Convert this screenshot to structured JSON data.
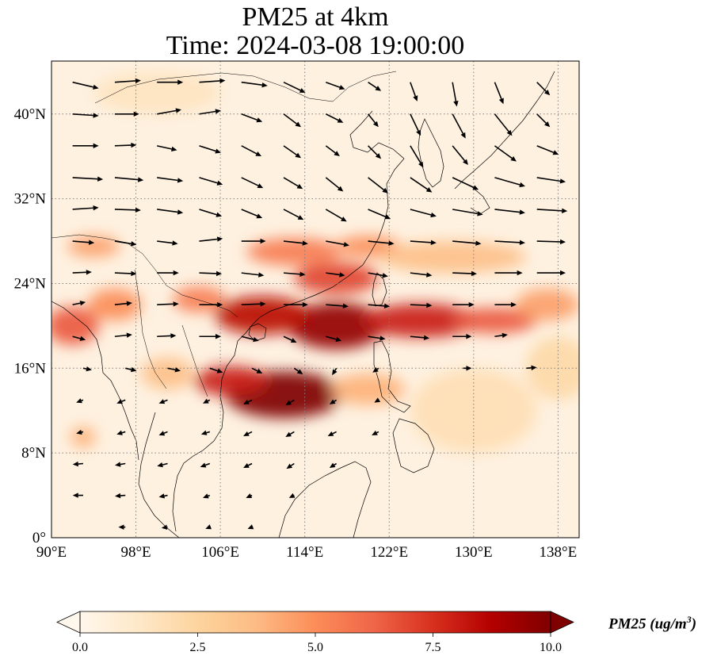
{
  "title": {
    "line1": "PM25 at 4km",
    "line2": "Time: 2024-03-08 19:00:00"
  },
  "map": {
    "projection": "PlateCarree",
    "lon_range": [
      90,
      140
    ],
    "lat_range": [
      0,
      45
    ],
    "gridlines": {
      "style": "dotted",
      "color": "#808080"
    },
    "lon_ticks": [
      {
        "value": 90,
        "label": "90°E"
      },
      {
        "value": 98,
        "label": "98°E"
      },
      {
        "value": 106,
        "label": "106°E"
      },
      {
        "value": 114,
        "label": "114°E"
      },
      {
        "value": 122,
        "label": "122°E"
      },
      {
        "value": 130,
        "label": "130°E"
      },
      {
        "value": 138,
        "label": "138°E"
      }
    ],
    "lat_ticks": [
      {
        "value": 0,
        "label": "0°"
      },
      {
        "value": 8,
        "label": "8°N"
      },
      {
        "value": 16,
        "label": "16°N"
      },
      {
        "value": 24,
        "label": "24°N"
      },
      {
        "value": 32,
        "label": "32°N"
      },
      {
        "value": 40,
        "label": "40°N"
      }
    ],
    "background_color": "#fef1e0",
    "pollution_blobs": [
      {
        "lon": 112,
        "lat": 13.5,
        "rlon": 5.5,
        "rlat": 2.2,
        "value": 10
      },
      {
        "lon": 107,
        "lat": 14.8,
        "rlon": 3.5,
        "rlat": 1.4,
        "value": 8
      },
      {
        "lon": 117,
        "lat": 20.0,
        "rlon": 4.5,
        "rlat": 2.2,
        "value": 9.5
      },
      {
        "lon": 110,
        "lat": 21.0,
        "rlon": 4.5,
        "rlat": 1.8,
        "value": 8.5
      },
      {
        "lon": 125,
        "lat": 20.5,
        "rlon": 5.5,
        "rlat": 1.6,
        "value": 8
      },
      {
        "lon": 132,
        "lat": 20.5,
        "rlon": 4.0,
        "rlat": 1.2,
        "value": 6.5
      },
      {
        "lon": 117,
        "lat": 24.5,
        "rlon": 4.0,
        "rlat": 1.5,
        "value": 7
      },
      {
        "lon": 113,
        "lat": 27.0,
        "rlon": 4.5,
        "rlat": 1.3,
        "value": 5.5
      },
      {
        "lon": 120,
        "lat": 27.5,
        "rlon": 3.0,
        "rlat": 1.0,
        "value": 5
      },
      {
        "lon": 92,
        "lat": 20.0,
        "rlon": 2.5,
        "rlat": 1.8,
        "value": 6.5
      },
      {
        "lon": 96,
        "lat": 22.0,
        "rlon": 2.5,
        "rlat": 1.5,
        "value": 5
      },
      {
        "lon": 94,
        "lat": 27.5,
        "rlon": 2.5,
        "rlat": 1.0,
        "value": 4.5
      },
      {
        "lon": 104,
        "lat": 22.5,
        "rlon": 2.5,
        "rlat": 1.2,
        "value": 5.5
      },
      {
        "lon": 128,
        "lat": 26.5,
        "rlon": 7.0,
        "rlat": 1.5,
        "value": 3.5
      },
      {
        "lon": 137,
        "lat": 22.0,
        "rlon": 3.0,
        "rlat": 1.5,
        "value": 4.5
      },
      {
        "lon": 120,
        "lat": 14.0,
        "rlon": 3.5,
        "rlat": 1.5,
        "value": 4
      },
      {
        "lon": 93,
        "lat": 9.5,
        "rlon": 1.2,
        "rlat": 1.0,
        "value": 4
      },
      {
        "lon": 101,
        "lat": 15.5,
        "rlon": 2.5,
        "rlat": 1.5,
        "value": 3.5
      },
      {
        "lon": 130,
        "lat": 12.0,
        "rlon": 6.0,
        "rlat": 4.0,
        "value": 1.8
      },
      {
        "lon": 100,
        "lat": 42.0,
        "rlon": 6.0,
        "rlat": 2.0,
        "value": 1.5
      },
      {
        "lon": 138,
        "lat": 16.0,
        "rlon": 3.0,
        "rlat": 3.0,
        "value": 2.2
      }
    ],
    "wind_vectors": [
      {
        "lon": 92,
        "lat": 43,
        "u": 3,
        "v": -0.7
      },
      {
        "lon": 96,
        "lat": 43,
        "u": 3,
        "v": 0.2
      },
      {
        "lon": 100,
        "lat": 43,
        "u": 3,
        "v": 0
      },
      {
        "lon": 104,
        "lat": 43,
        "u": 3,
        "v": 0.2
      },
      {
        "lon": 108,
        "lat": 43,
        "u": 3,
        "v": -0.4
      },
      {
        "lon": 112,
        "lat": 43,
        "u": 2.5,
        "v": -1.2
      },
      {
        "lon": 116,
        "lat": 43,
        "u": 2.2,
        "v": -0.8
      },
      {
        "lon": 120,
        "lat": 43,
        "u": 1.5,
        "v": -1
      },
      {
        "lon": 124,
        "lat": 43,
        "u": 0.8,
        "v": -2.2
      },
      {
        "lon": 128,
        "lat": 43,
        "u": 0.5,
        "v": -2.8
      },
      {
        "lon": 132,
        "lat": 43,
        "u": 1,
        "v": -2.5
      },
      {
        "lon": 136,
        "lat": 43,
        "u": 1.5,
        "v": -1.5
      },
      {
        "lon": 92,
        "lat": 40,
        "u": 3,
        "v": -0.2
      },
      {
        "lon": 96,
        "lat": 40,
        "u": 2.8,
        "v": 0
      },
      {
        "lon": 100,
        "lat": 40,
        "u": 2.8,
        "v": 0.5
      },
      {
        "lon": 104,
        "lat": 40,
        "u": 2.5,
        "v": 0.4
      },
      {
        "lon": 108,
        "lat": 40,
        "u": 2.4,
        "v": -0.9
      },
      {
        "lon": 112,
        "lat": 40,
        "u": 2,
        "v": -1.5
      },
      {
        "lon": 116,
        "lat": 40,
        "u": 2,
        "v": -1
      },
      {
        "lon": 120,
        "lat": 40,
        "u": 1.2,
        "v": -1.5
      },
      {
        "lon": 124,
        "lat": 40,
        "u": 1.2,
        "v": -2.5
      },
      {
        "lon": 128,
        "lat": 40,
        "u": 1.5,
        "v": -2.8
      },
      {
        "lon": 132,
        "lat": 40,
        "u": 2,
        "v": -2.5
      },
      {
        "lon": 136,
        "lat": 40,
        "u": 1.5,
        "v": -1.5
      },
      {
        "lon": 92,
        "lat": 37,
        "u": 3,
        "v": 0
      },
      {
        "lon": 96,
        "lat": 37,
        "u": 2.5,
        "v": 0.1
      },
      {
        "lon": 100,
        "lat": 37,
        "u": 2.3,
        "v": -0.5
      },
      {
        "lon": 104,
        "lat": 37,
        "u": 2.5,
        "v": -0.8
      },
      {
        "lon": 108,
        "lat": 37,
        "u": 2.3,
        "v": -1.2
      },
      {
        "lon": 112,
        "lat": 37,
        "u": 2,
        "v": -1.4
      },
      {
        "lon": 116,
        "lat": 37,
        "u": 1.6,
        "v": -1.2
      },
      {
        "lon": 120,
        "lat": 37,
        "u": 1.5,
        "v": -1.5
      },
      {
        "lon": 124,
        "lat": 37,
        "u": 1.5,
        "v": -2.5
      },
      {
        "lon": 128,
        "lat": 37,
        "u": 1.8,
        "v": -2.2
      },
      {
        "lon": 132,
        "lat": 37,
        "u": 2.5,
        "v": -1.8
      },
      {
        "lon": 136,
        "lat": 37,
        "u": 2.5,
        "v": -1
      },
      {
        "lon": 92,
        "lat": 34,
        "u": 3.5,
        "v": -0.2
      },
      {
        "lon": 96,
        "lat": 34,
        "u": 3.3,
        "v": -0.3
      },
      {
        "lon": 100,
        "lat": 34,
        "u": 3,
        "v": -0.4
      },
      {
        "lon": 104,
        "lat": 34,
        "u": 2.7,
        "v": -0.8
      },
      {
        "lon": 108,
        "lat": 34,
        "u": 2.5,
        "v": -1.2
      },
      {
        "lon": 112,
        "lat": 34,
        "u": 2.2,
        "v": -1.3
      },
      {
        "lon": 116,
        "lat": 34,
        "u": 2,
        "v": -1.6
      },
      {
        "lon": 120,
        "lat": 34,
        "u": 2.3,
        "v": -1.8
      },
      {
        "lon": 124,
        "lat": 34,
        "u": 2.5,
        "v": -1.7
      },
      {
        "lon": 128,
        "lat": 34,
        "u": 3,
        "v": -1.4
      },
      {
        "lon": 132,
        "lat": 34,
        "u": 3.5,
        "v": -1
      },
      {
        "lon": 136,
        "lat": 34,
        "u": 3.3,
        "v": -0.5
      },
      {
        "lon": 92,
        "lat": 31,
        "u": 3,
        "v": 0.2
      },
      {
        "lon": 96,
        "lat": 31,
        "u": 3,
        "v": -0.1
      },
      {
        "lon": 100,
        "lat": 31,
        "u": 3,
        "v": -0.4
      },
      {
        "lon": 104,
        "lat": 31,
        "u": 2.6,
        "v": -0.8
      },
      {
        "lon": 108,
        "lat": 31,
        "u": 2.4,
        "v": -1
      },
      {
        "lon": 112,
        "lat": 31,
        "u": 2.3,
        "v": -1.2
      },
      {
        "lon": 116,
        "lat": 31,
        "u": 2.4,
        "v": -1.4
      },
      {
        "lon": 120,
        "lat": 31,
        "u": 2.6,
        "v": -1.1
      },
      {
        "lon": 124,
        "lat": 31,
        "u": 3,
        "v": -0.8
      },
      {
        "lon": 128,
        "lat": 31,
        "u": 3.5,
        "v": -0.6
      },
      {
        "lon": 132,
        "lat": 31,
        "u": 3.5,
        "v": -0.4
      },
      {
        "lon": 136,
        "lat": 31,
        "u": 3.5,
        "v": -0.2
      },
      {
        "lon": 92,
        "lat": 28,
        "u": 2.5,
        "v": -0.2
      },
      {
        "lon": 96,
        "lat": 28,
        "u": 2.5,
        "v": -0.4
      },
      {
        "lon": 100,
        "lat": 28,
        "u": 2.4,
        "v": -0.3
      },
      {
        "lon": 104,
        "lat": 28,
        "u": 2.7,
        "v": 0.3
      },
      {
        "lon": 108,
        "lat": 28,
        "u": 2.8,
        "v": 0
      },
      {
        "lon": 112,
        "lat": 28,
        "u": 2.8,
        "v": -0.3
      },
      {
        "lon": 116,
        "lat": 28,
        "u": 2.7,
        "v": -0.5
      },
      {
        "lon": 120,
        "lat": 28,
        "u": 3,
        "v": -0.3
      },
      {
        "lon": 124,
        "lat": 28,
        "u": 3,
        "v": -0.2
      },
      {
        "lon": 128,
        "lat": 28,
        "u": 3.3,
        "v": -0.3
      },
      {
        "lon": 132,
        "lat": 28,
        "u": 3.5,
        "v": -0.2
      },
      {
        "lon": 136,
        "lat": 28,
        "u": 3.3,
        "v": -0.1
      },
      {
        "lon": 92,
        "lat": 25,
        "u": 2.2,
        "v": 0.1
      },
      {
        "lon": 96,
        "lat": 25,
        "u": 2.5,
        "v": -0.1
      },
      {
        "lon": 100,
        "lat": 25,
        "u": 2.5,
        "v": 0
      },
      {
        "lon": 104,
        "lat": 25,
        "u": 2.6,
        "v": -0.1
      },
      {
        "lon": 108,
        "lat": 25,
        "u": 2.6,
        "v": -0.3
      },
      {
        "lon": 112,
        "lat": 25,
        "u": 2.5,
        "v": -0.2
      },
      {
        "lon": 116,
        "lat": 25,
        "u": 2.2,
        "v": -0.3
      },
      {
        "lon": 120,
        "lat": 25,
        "u": 2.3,
        "v": -0.4
      },
      {
        "lon": 124,
        "lat": 25,
        "u": 2.5,
        "v": -0.3
      },
      {
        "lon": 128,
        "lat": 25,
        "u": 2.8,
        "v": -0.1
      },
      {
        "lon": 132,
        "lat": 25,
        "u": 3.2,
        "v": 0
      },
      {
        "lon": 136,
        "lat": 25,
        "u": 3.3,
        "v": 0
      },
      {
        "lon": 92,
        "lat": 22,
        "u": 1.5,
        "v": 0.3
      },
      {
        "lon": 96,
        "lat": 22,
        "u": 2,
        "v": 0.2
      },
      {
        "lon": 100,
        "lat": 22,
        "u": 2.5,
        "v": 0.1
      },
      {
        "lon": 104,
        "lat": 22,
        "u": 2.7,
        "v": 0
      },
      {
        "lon": 108,
        "lat": 22,
        "u": 2.8,
        "v": 0.1
      },
      {
        "lon": 112,
        "lat": 22,
        "u": 2.8,
        "v": 0
      },
      {
        "lon": 116,
        "lat": 22,
        "u": 2.6,
        "v": -0.2
      },
      {
        "lon": 120,
        "lat": 22,
        "u": 2.5,
        "v": -0.2
      },
      {
        "lon": 124,
        "lat": 22,
        "u": 2.5,
        "v": -0.1
      },
      {
        "lon": 128,
        "lat": 22,
        "u": 2.5,
        "v": 0
      },
      {
        "lon": 132,
        "lat": 22,
        "u": 2.5,
        "v": 0
      },
      {
        "lon": 92,
        "lat": 19,
        "u": 1.5,
        "v": -0.4
      },
      {
        "lon": 96,
        "lat": 19,
        "u": 2,
        "v": 0.2
      },
      {
        "lon": 100,
        "lat": 19,
        "u": 2.2,
        "v": 0.1
      },
      {
        "lon": 104,
        "lat": 19,
        "u": 2.5,
        "v": 0
      },
      {
        "lon": 108,
        "lat": 19,
        "u": 2,
        "v": -0.5
      },
      {
        "lon": 112,
        "lat": 19,
        "u": 1.5,
        "v": -0.7
      },
      {
        "lon": 116,
        "lat": 19,
        "u": 1.8,
        "v": -0.5
      },
      {
        "lon": 120,
        "lat": 19,
        "u": 2,
        "v": -0.3
      },
      {
        "lon": 124,
        "lat": 19,
        "u": 2.2,
        "v": -0.2
      },
      {
        "lon": 128,
        "lat": 19,
        "u": 2.2,
        "v": 0
      },
      {
        "lon": 132,
        "lat": 19,
        "u": 1.5,
        "v": 0.2
      },
      {
        "lon": 93,
        "lat": 16,
        "u": 1,
        "v": -0.2
      },
      {
        "lon": 97,
        "lat": 16,
        "u": 1.3,
        "v": -0.3
      },
      {
        "lon": 101,
        "lat": 16,
        "u": 1.5,
        "v": -0.3
      },
      {
        "lon": 105,
        "lat": 16,
        "u": 1.5,
        "v": -0.5
      },
      {
        "lon": 109,
        "lat": 16,
        "u": 1.2,
        "v": -0.6
      },
      {
        "lon": 113,
        "lat": 16,
        "u": 1,
        "v": -0.7
      },
      {
        "lon": 117,
        "lat": 16,
        "u": -0.5,
        "v": -0.8
      },
      {
        "lon": 121,
        "lat": 16,
        "u": -0.7,
        "v": -0.5
      },
      {
        "lon": 129,
        "lat": 16,
        "u": 1,
        "v": 0
      },
      {
        "lon": 135,
        "lat": 16,
        "u": 1.2,
        "v": 0.1
      },
      {
        "lon": 93,
        "lat": 13,
        "u": -0.8,
        "v": -0.3
      },
      {
        "lon": 97,
        "lat": 13,
        "u": -1,
        "v": -0.4
      },
      {
        "lon": 101,
        "lat": 13,
        "u": -1,
        "v": -0.4
      },
      {
        "lon": 105,
        "lat": 13,
        "u": -0.8,
        "v": -0.4
      },
      {
        "lon": 109,
        "lat": 13,
        "u": -1,
        "v": -0.5
      },
      {
        "lon": 113,
        "lat": 13,
        "u": -1,
        "v": -0.6
      },
      {
        "lon": 117,
        "lat": 13,
        "u": -0.8,
        "v": -0.5
      },
      {
        "lon": 121,
        "lat": 13,
        "u": -0.5,
        "v": -0.3
      },
      {
        "lon": 93,
        "lat": 10,
        "u": -0.8,
        "v": -0.2
      },
      {
        "lon": 97,
        "lat": 10,
        "u": -1,
        "v": -0.3
      },
      {
        "lon": 101,
        "lat": 10,
        "u": -1,
        "v": -0.4
      },
      {
        "lon": 105,
        "lat": 10,
        "u": -1,
        "v": -0.3
      },
      {
        "lon": 109,
        "lat": 10,
        "u": -1,
        "v": -0.5
      },
      {
        "lon": 113,
        "lat": 10,
        "u": -1,
        "v": -0.6
      },
      {
        "lon": 117,
        "lat": 10,
        "u": -1,
        "v": -0.5
      },
      {
        "lon": 121,
        "lat": 10,
        "u": -0.8,
        "v": -0.4
      },
      {
        "lon": 93,
        "lat": 7,
        "u": -1.2,
        "v": -0.1
      },
      {
        "lon": 97,
        "lat": 7,
        "u": -1.2,
        "v": -0.2
      },
      {
        "lon": 101,
        "lat": 7,
        "u": -1.2,
        "v": -0.3
      },
      {
        "lon": 105,
        "lat": 7,
        "u": -1.1,
        "v": -0.4
      },
      {
        "lon": 109,
        "lat": 7,
        "u": -1,
        "v": -0.5
      },
      {
        "lon": 113,
        "lat": 7,
        "u": -0.9,
        "v": -0.6
      },
      {
        "lon": 117,
        "lat": 7,
        "u": -0.8,
        "v": -0.5
      },
      {
        "lon": 93,
        "lat": 4,
        "u": -1.2,
        "v": 0
      },
      {
        "lon": 97,
        "lat": 4,
        "u": -1.2,
        "v": -0.1
      },
      {
        "lon": 101,
        "lat": 4,
        "u": -1,
        "v": -0.2
      },
      {
        "lon": 105,
        "lat": 4,
        "u": -0.8,
        "v": -0.3
      },
      {
        "lon": 109,
        "lat": 4,
        "u": -0.7,
        "v": -0.3
      },
      {
        "lon": 113,
        "lat": 4,
        "u": -0.6,
        "v": -0.3
      },
      {
        "lon": 97,
        "lat": 1,
        "u": -0.8,
        "v": 0
      },
      {
        "lon": 101,
        "lat": 1,
        "u": -0.7,
        "v": -0.1
      },
      {
        "lon": 105,
        "lat": 1,
        "u": -0.5,
        "v": -0.2
      },
      {
        "lon": 109,
        "lat": 1,
        "u": -0.5,
        "v": -0.2
      }
    ]
  },
  "colorbar": {
    "cmap": "OrRd",
    "vmin": 0.0,
    "vmax": 10.0,
    "extend": "both",
    "stops": [
      "#fff7ec",
      "#fee8c8",
      "#fdd49e",
      "#fdbb84",
      "#fc8d59",
      "#ef6548",
      "#d7301f",
      "#b30000",
      "#7f0000"
    ],
    "ticks": [
      {
        "value": 0.0,
        "label": "0.0"
      },
      {
        "value": 2.5,
        "label": "2.5"
      },
      {
        "value": 5.0,
        "label": "5.0"
      },
      {
        "value": 7.5,
        "label": "7.5"
      },
      {
        "value": 10.0,
        "label": "10.0"
      }
    ],
    "label_main": "PM25 (ug/m",
    "label_exp": "3",
    "label_close": ")"
  }
}
